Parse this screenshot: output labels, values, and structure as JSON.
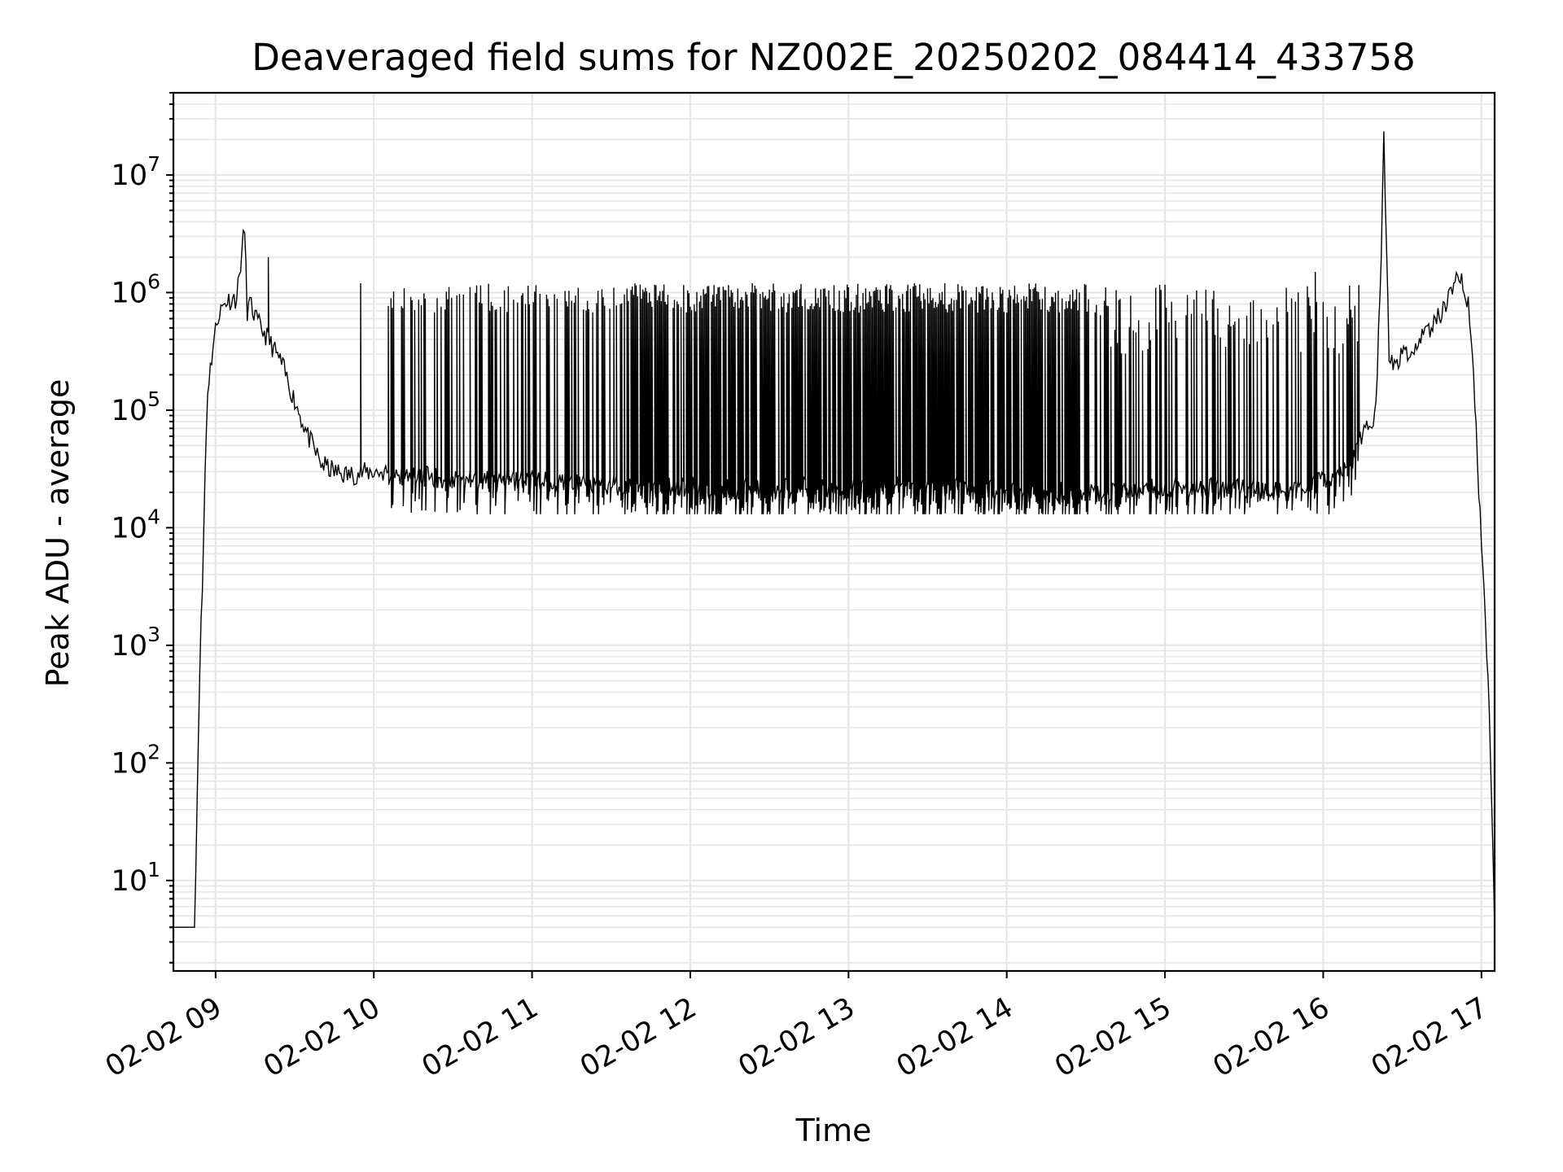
{
  "chart_data": {
    "type": "line",
    "title": "Deaveraged field sums for NZ002E_20250202_084414_433758",
    "xlabel": "Time",
    "ylabel": "Peak ADU - average",
    "yscale": "log",
    "xlim": [
      "2025-02-02 08:44",
      "2025-02-02 17:05"
    ],
    "ylim": [
      1.7,
      50000000
    ],
    "x_ticks": [
      "02-02 09",
      "02-02 10",
      "02-02 11",
      "02-02 12",
      "02-02 13",
      "02-02 14",
      "02-02 15",
      "02-02 16",
      "02-02 17"
    ],
    "y_ticks": [
      {
        "value": 10,
        "base": "10",
        "exp": "1"
      },
      {
        "value": 100,
        "base": "10",
        "exp": "2"
      },
      {
        "value": 1000,
        "base": "10",
        "exp": "3"
      },
      {
        "value": 10000,
        "base": "10",
        "exp": "4"
      },
      {
        "value": 100000,
        "base": "10",
        "exp": "5"
      },
      {
        "value": 1000000,
        "base": "10",
        "exp": "6"
      },
      {
        "value": 10000000,
        "base": "10",
        "exp": "7"
      }
    ],
    "grid": true,
    "line_color": "#000000",
    "series": [
      {
        "x": [
          "2025-02-02 08:44",
          "2025-02-02 08:47",
          "2025-02-02 08:50",
          "2025-02-02 08:52",
          "2025-02-02 08:53",
          "2025-02-02 08:54",
          "2025-02-02 08:55",
          "2025-02-02 08:56",
          "2025-02-02 08:57",
          "2025-02-02 08:59",
          "2025-02-02 09:01",
          "2025-02-02 09:04",
          "2025-02-02 09:08",
          "2025-02-02 09:11",
          "2025-02-02 09:12",
          "2025-02-02 09:13",
          "2025-02-02 09:16",
          "2025-02-02 09:20",
          "2025-02-02 09:25",
          "2025-02-02 09:30",
          "2025-02-02 09:35",
          "2025-02-02 09:40",
          "2025-02-02 09:45",
          "2025-02-02 09:50",
          "2025-02-02 10:00",
          "2025-02-02 10:15",
          "2025-02-02 10:30",
          "2025-02-02 10:45",
          "2025-02-02 11:00",
          "2025-02-02 11:15",
          "2025-02-02 11:30",
          "2025-02-02 11:45",
          "2025-02-02 12:00",
          "2025-02-02 12:15",
          "2025-02-02 12:30",
          "2025-02-02 12:45",
          "2025-02-02 13:00",
          "2025-02-02 13:15",
          "2025-02-02 13:30",
          "2025-02-02 13:45",
          "2025-02-02 14:00",
          "2025-02-02 14:15",
          "2025-02-02 14:30",
          "2025-02-02 14:45",
          "2025-02-02 15:00",
          "2025-02-02 15:15",
          "2025-02-02 15:30",
          "2025-02-02 15:45",
          "2025-02-02 16:00",
          "2025-02-02 16:10",
          "2025-02-02 16:20",
          "2025-02-02 16:22",
          "2025-02-02 16:23",
          "2025-02-02 16:25",
          "2025-02-02 16:30",
          "2025-02-02 16:40",
          "2025-02-02 16:45",
          "2025-02-02 16:50",
          "2025-02-02 16:53",
          "2025-02-02 16:55",
          "2025-02-02 16:57",
          "2025-02-02 16:59",
          "2025-02-02 17:01",
          "2025-02-02 17:03",
          "2025-02-02 17:04",
          "2025-02-02 17:05"
        ],
        "y": [
          4,
          4,
          4,
          4,
          50,
          700,
          3000,
          30000,
          150000,
          350000,
          650000,
          850000,
          900000,
          3500000,
          700000,
          800000,
          550000,
          400000,
          250000,
          120000,
          60000,
          35000,
          30000,
          28000,
          30000,
          28000,
          26000,
          25000,
          25000,
          24000,
          23000,
          22000,
          22000,
          21000,
          22000,
          22000,
          23000,
          23000,
          22000,
          22000,
          21000,
          20000,
          20000,
          21000,
          22000,
          22000,
          21000,
          20000,
          25000,
          35000,
          100000,
          2000000,
          23000000,
          250000,
          280000,
          450000,
          700000,
          1300000,
          1200000,
          800000,
          200000,
          20000,
          3000,
          300,
          30,
          4
        ],
        "spikes": [
          {
            "x": "2025-02-02 09:20",
            "y": 2000000
          },
          {
            "x": "2025-02-02 09:55",
            "y": 1200000
          },
          {
            "x": "2025-02-02 15:57",
            "y": 1500000
          }
        ],
        "dense_band": {
          "x_start": "2025-02-02 10:05",
          "x_end": "2025-02-02 16:15",
          "upper": 1200000,
          "lower": 13000
        }
      }
    ]
  }
}
